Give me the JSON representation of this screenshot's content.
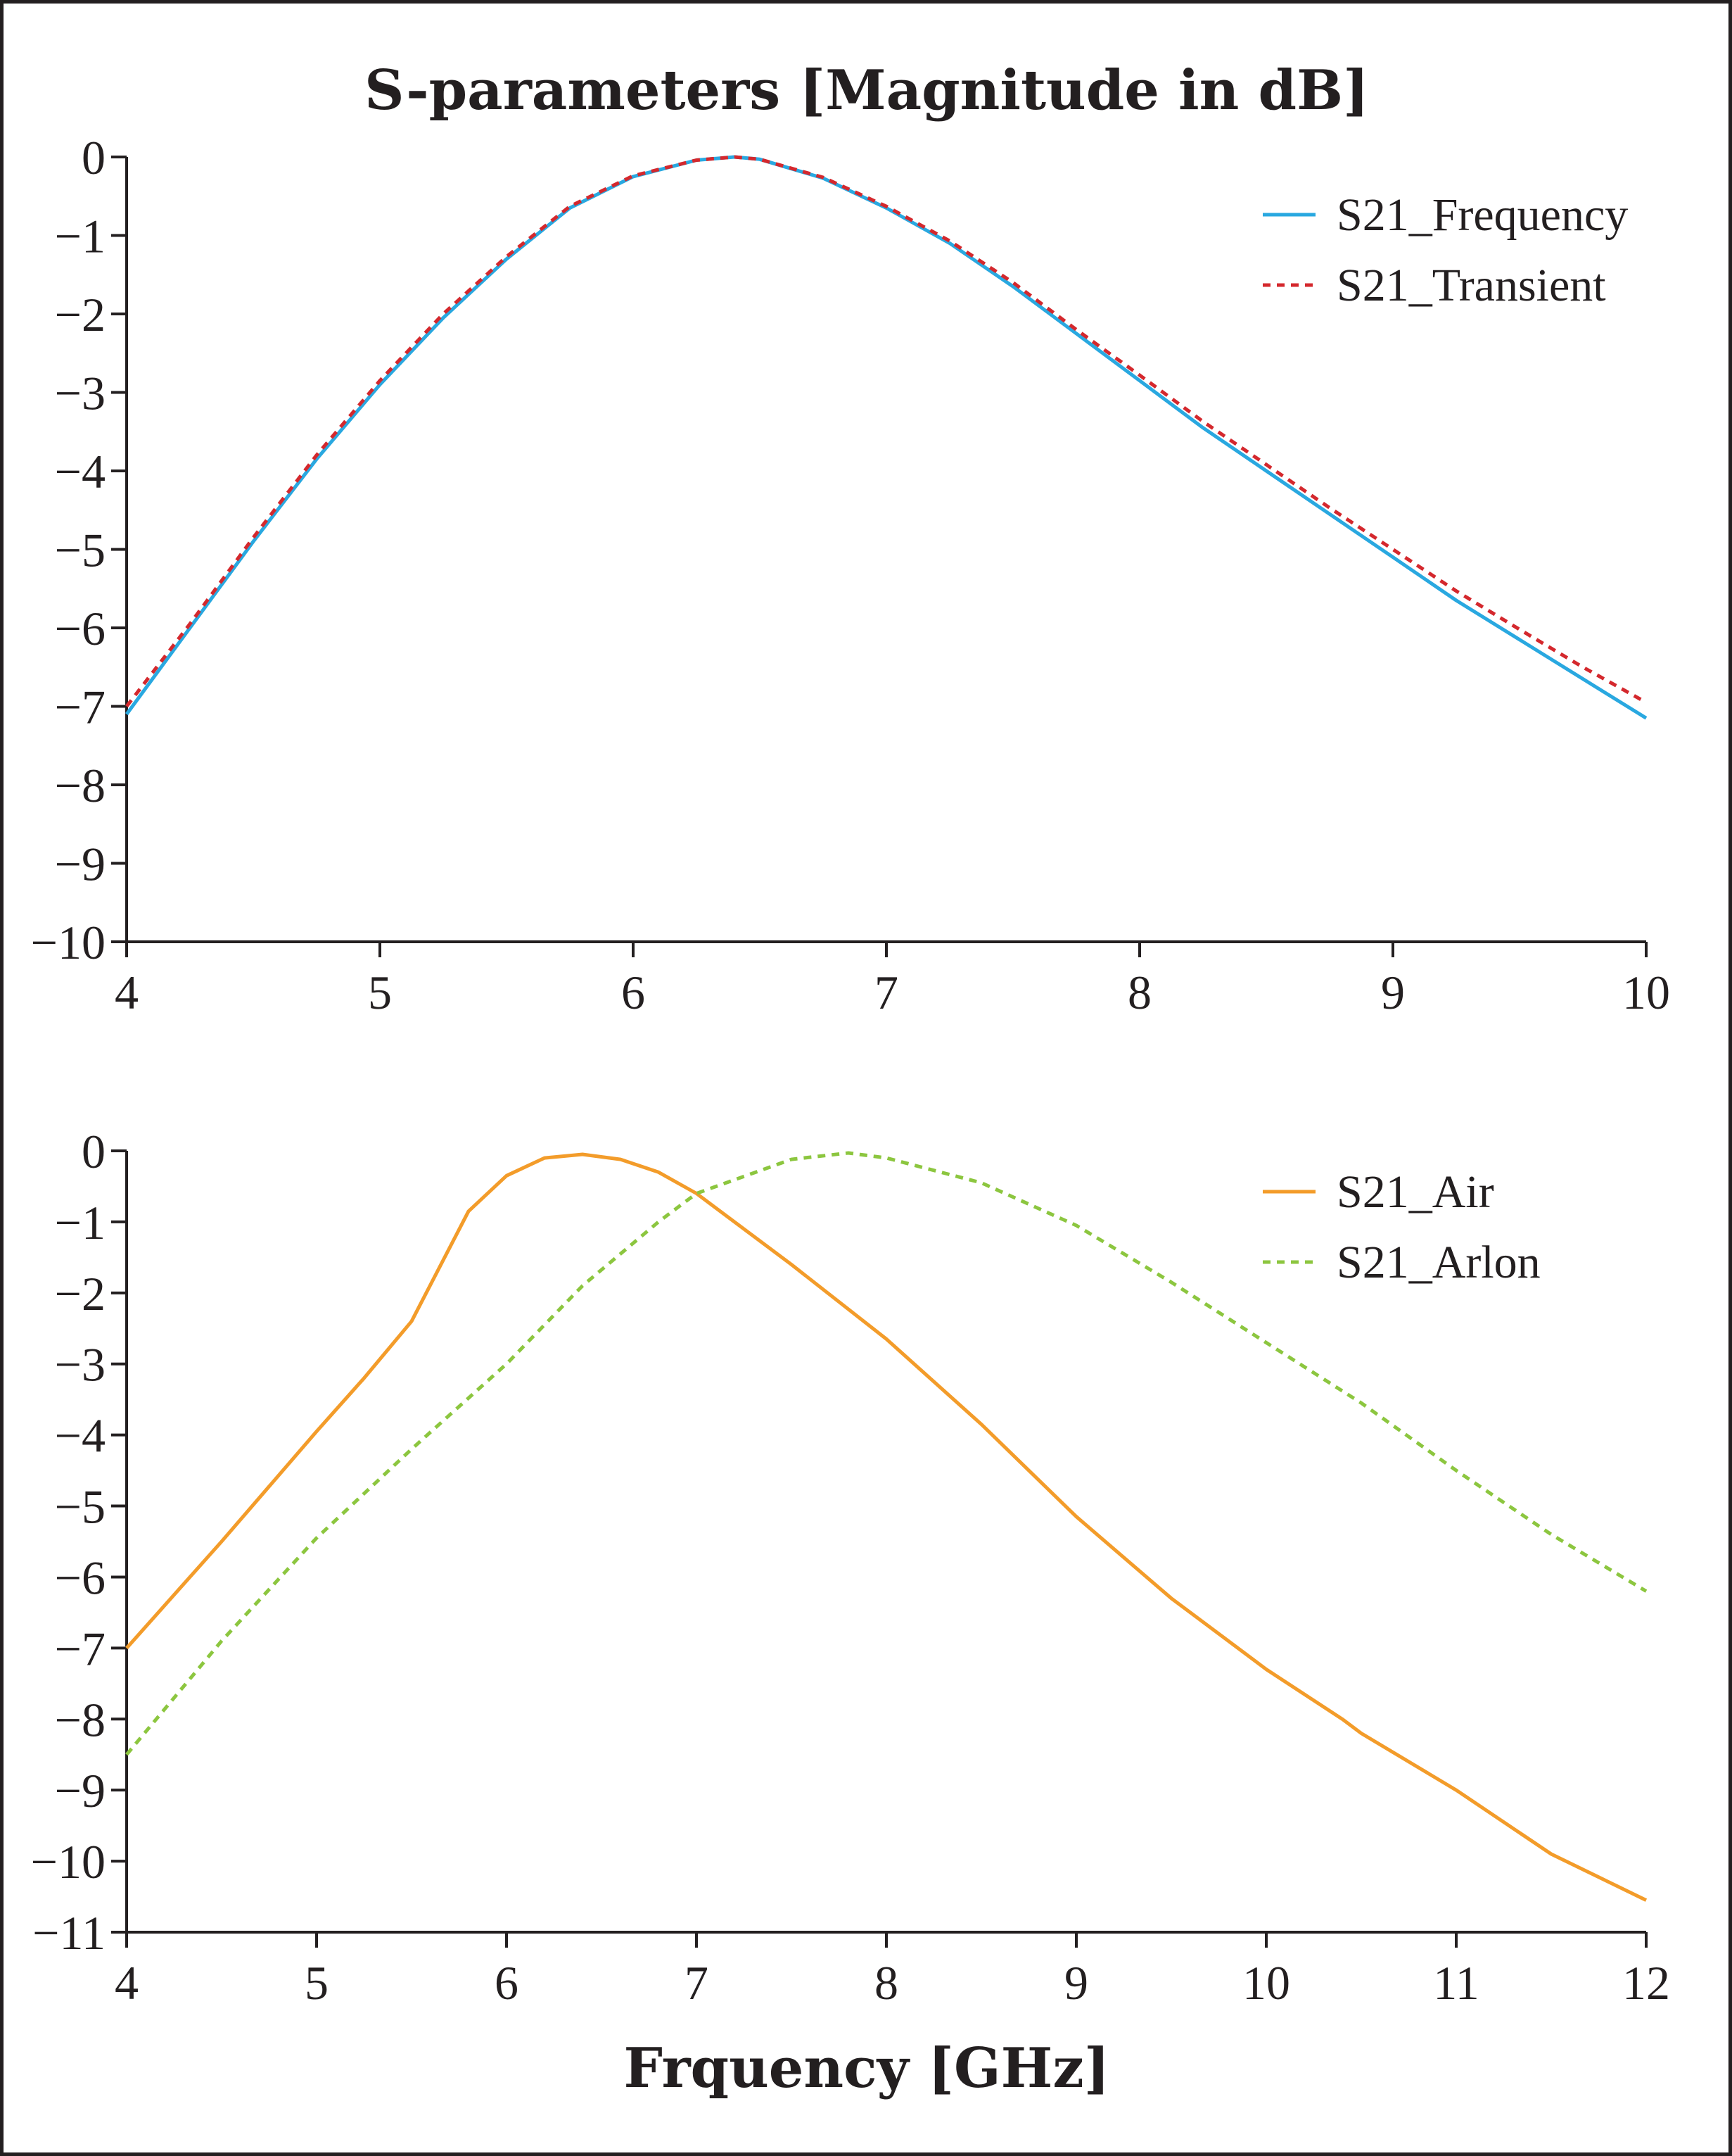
{
  "figure": {
    "title": "S-parameters [Magnitude in dB]",
    "xlabel": "Frquency [GHz]"
  },
  "chart_data": [
    {
      "type": "line",
      "title": "S-parameters [Magnitude in dB]",
      "xlabel": "",
      "ylabel": "",
      "xlim": [
        4,
        10
      ],
      "ylim": [
        -10,
        0
      ],
      "xticks": [
        "4",
        "5",
        "6",
        "7",
        "8",
        "9",
        "10"
      ],
      "yticks": [
        "0",
        "−1",
        "−2",
        "−3",
        "−4",
        "−5",
        "−6",
        "−7",
        "−8",
        "−9",
        "−10"
      ],
      "grid": false,
      "legend": "top-right",
      "series": [
        {
          "name": "S21_Frequency",
          "color": "#29a8e0",
          "style": "solid",
          "x": [
            4,
            4.25,
            4.5,
            4.75,
            5,
            5.25,
            5.5,
            5.75,
            6,
            6.25,
            6.4,
            6.5,
            6.75,
            7,
            7.25,
            7.5,
            7.75,
            8,
            8.25,
            8.5,
            8.75,
            9,
            9.25,
            9.5,
            9.75,
            10
          ],
          "y": [
            -7.1,
            -6.0,
            -4.9,
            -3.85,
            -2.9,
            -2.05,
            -1.3,
            -0.65,
            -0.25,
            -0.04,
            0.0,
            -0.03,
            -0.27,
            -0.65,
            -1.1,
            -1.65,
            -2.25,
            -2.85,
            -3.45,
            -4.0,
            -4.55,
            -5.1,
            -5.65,
            -6.15,
            -6.65,
            -7.15
          ]
        },
        {
          "name": "S21_Transient",
          "color": "#d4282d",
          "style": "dotted",
          "x": [
            4,
            4.25,
            4.5,
            4.75,
            5,
            5.25,
            5.5,
            5.75,
            6,
            6.25,
            6.4,
            6.5,
            6.75,
            7,
            7.25,
            7.5,
            7.75,
            8,
            8.25,
            8.5,
            8.75,
            9,
            9.25,
            9.5,
            9.75,
            10
          ],
          "y": [
            -7.0,
            -5.95,
            -4.85,
            -3.8,
            -2.85,
            -2.0,
            -1.27,
            -0.63,
            -0.24,
            -0.04,
            0.0,
            -0.03,
            -0.26,
            -0.63,
            -1.07,
            -1.6,
            -2.2,
            -2.78,
            -3.37,
            -3.92,
            -4.47,
            -5.0,
            -5.53,
            -6.02,
            -6.5,
            -6.95
          ]
        }
      ]
    },
    {
      "type": "line",
      "title": "",
      "xlabel": "Frquency [GHz]",
      "ylabel": "",
      "xlim": [
        4,
        12
      ],
      "ylim": [
        -11,
        0
      ],
      "xticks": [
        "4",
        "5",
        "6",
        "7",
        "8",
        "9",
        "10",
        "11",
        "12"
      ],
      "yticks": [
        "0",
        "−1",
        "−2",
        "−3",
        "−4",
        "−5",
        "−6",
        "−7",
        "−8",
        "−9",
        "−10",
        "−11"
      ],
      "grid": false,
      "legend": "top-right",
      "series": [
        {
          "name": "S21_Air",
          "color": "#f39c2a",
          "style": "solid",
          "x": [
            4,
            4.5,
            5,
            5.25,
            5.5,
            5.8,
            6,
            6.2,
            6.4,
            6.6,
            6.8,
            7,
            7.5,
            8,
            8.5,
            9,
            9.5,
            10,
            10.4,
            10.5,
            11,
            11.5,
            12
          ],
          "y": [
            -7.0,
            -5.5,
            -3.95,
            -3.2,
            -2.4,
            -0.85,
            -0.35,
            -0.1,
            -0.05,
            -0.12,
            -0.3,
            -0.6,
            -1.6,
            -2.65,
            -3.85,
            -5.15,
            -6.3,
            -7.3,
            -8.0,
            -8.2,
            -9.0,
            -9.9,
            -10.55
          ]
        },
        {
          "name": "S21_Arlon",
          "color": "#8cc63f",
          "style": "dotted",
          "x": [
            4,
            4.5,
            5,
            5.5,
            6,
            6.4,
            6.8,
            7,
            7.5,
            7.8,
            8,
            8.5,
            9,
            9.5,
            10,
            10.5,
            11,
            11.5,
            12
          ],
          "y": [
            -8.5,
            -6.9,
            -5.45,
            -4.2,
            -3.0,
            -1.9,
            -1.0,
            -0.6,
            -0.12,
            -0.03,
            -0.1,
            -0.45,
            -1.05,
            -1.85,
            -2.7,
            -3.55,
            -4.5,
            -5.4,
            -6.2
          ]
        }
      ]
    }
  ]
}
